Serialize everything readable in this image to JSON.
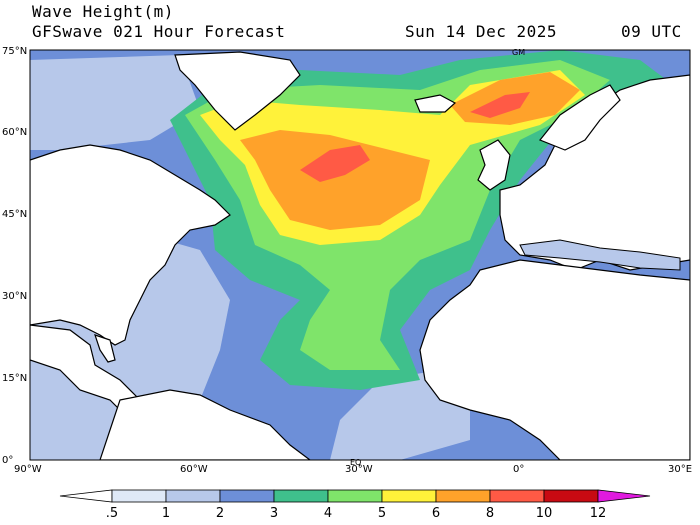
{
  "header": {
    "title": "Wave Height(m)",
    "subtitle": "GFSwave 021 Hour Forecast",
    "date": "Sun 14 Dec 2025",
    "time": "09 UTC"
  },
  "map": {
    "region": "North Atlantic",
    "lat_labels": [
      "75°N",
      "60°N",
      "45°N",
      "30°N",
      "15°N",
      "0°"
    ],
    "lon_labels": [
      "90°W",
      "60°W",
      "30°W",
      "0°",
      "30°E"
    ],
    "lat_range": [
      0,
      75
    ],
    "lon_range": [
      -90,
      30
    ],
    "markers": {
      "top": "GM",
      "bottom": "EQ"
    }
  },
  "colorbar": {
    "labels": [
      ".5",
      "1",
      "2",
      "3",
      "4",
      "5",
      "6",
      "8",
      "10",
      "12"
    ],
    "colors": [
      "#ffffff",
      "#dfe9f7",
      "#b7c8ea",
      "#6d8fd8",
      "#3fc08c",
      "#7fe46a",
      "#fff23a",
      "#ffa22a",
      "#ff5a45",
      "#c80a12",
      "#e01adf"
    ]
  },
  "colors": {
    "land": "#ffffff",
    "coast": "#000000",
    "ocean_low": "#b7c8ea",
    "ocean_mid": "#6d8fd8",
    "band_green": "#3fc08c",
    "band_lightgreen": "#7fe46a",
    "band_yellow": "#fff23a",
    "band_orange": "#ffa22a",
    "band_red": "#ff5a45"
  }
}
